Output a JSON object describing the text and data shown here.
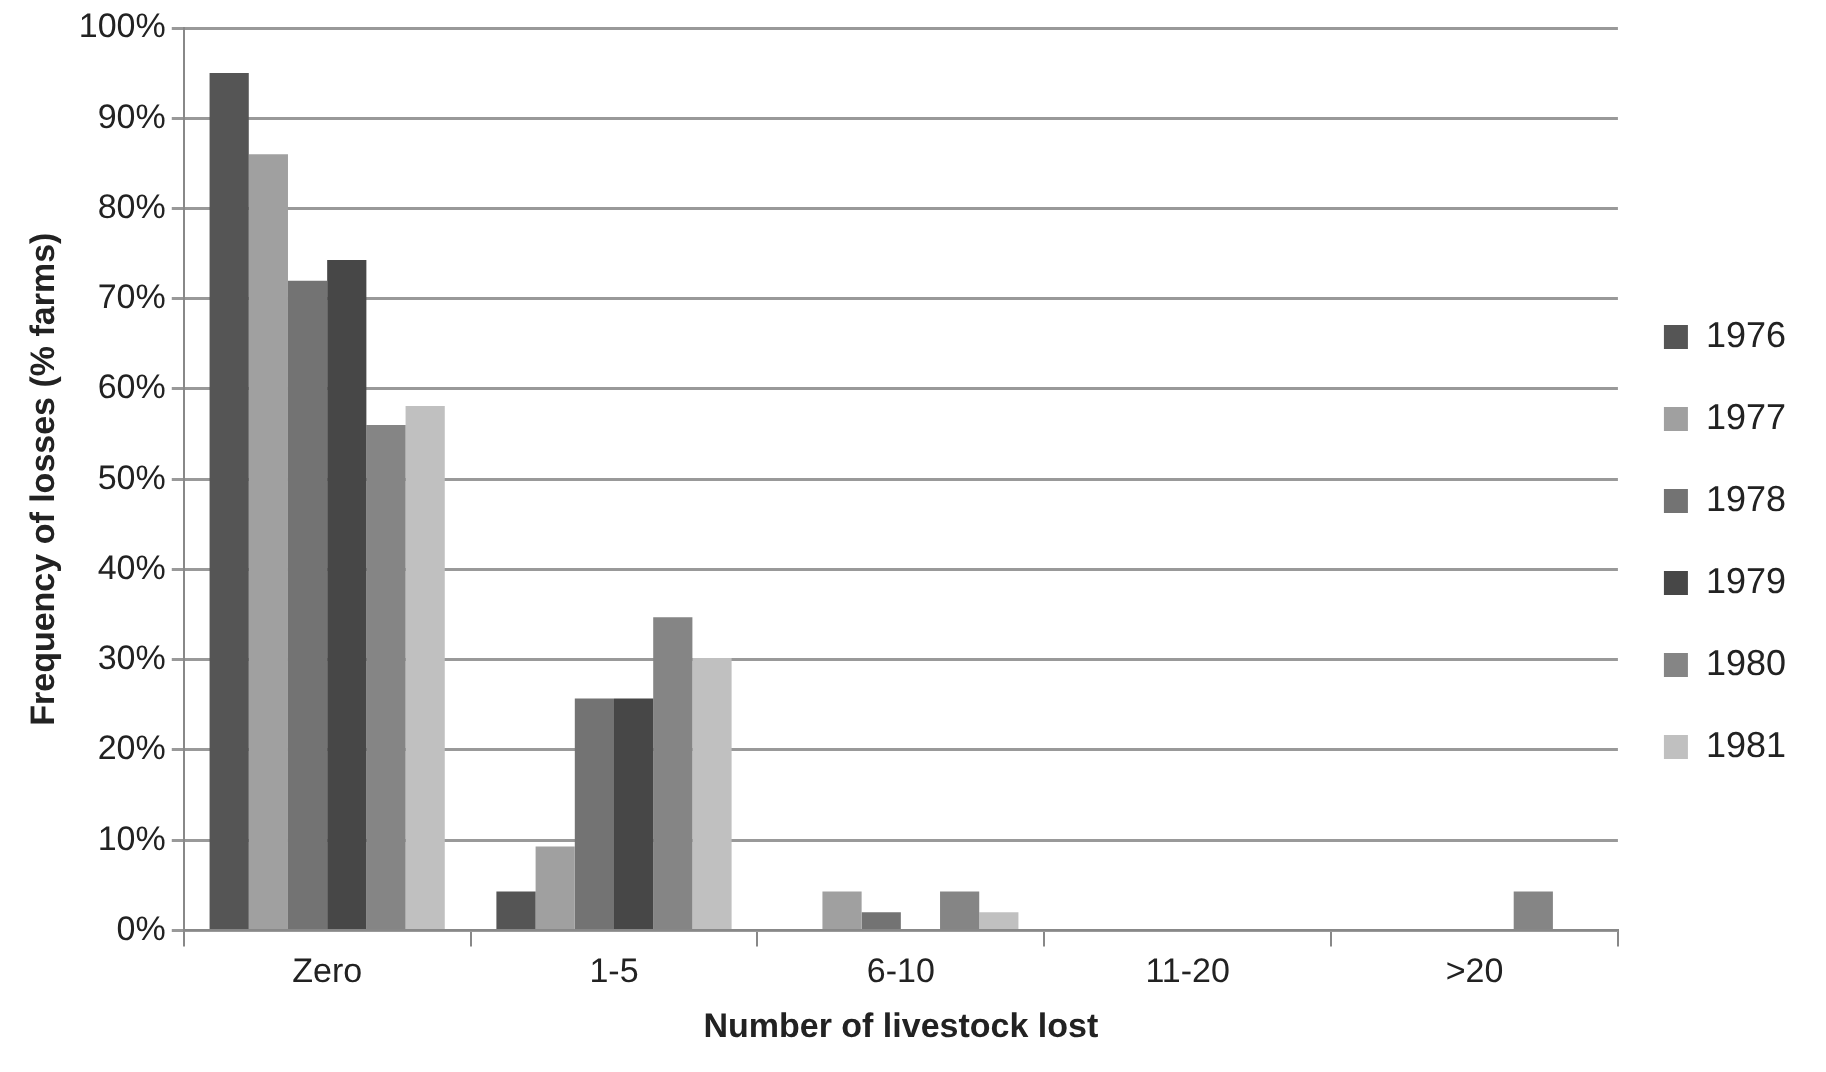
{
  "chart_data": {
    "type": "bar",
    "xlabel": "Number of livestock lost",
    "ylabel": "Frequency of losses (% farms)",
    "categories": [
      "Zero",
      "1-5",
      "6-10",
      "11-20",
      ">20"
    ],
    "series": [
      {
        "name": "1976",
        "color": "#555555",
        "values": [
          95,
          4.3,
          0,
          0,
          0
        ]
      },
      {
        "name": "1977",
        "color": "#a0a0a0",
        "values": [
          86,
          9.3,
          4.3,
          0,
          0
        ]
      },
      {
        "name": "1978",
        "color": "#737373",
        "values": [
          72,
          25.7,
          2.0,
          0,
          0
        ]
      },
      {
        "name": "1979",
        "color": "#474747",
        "values": [
          74.3,
          25.7,
          0,
          0,
          0
        ]
      },
      {
        "name": "1980",
        "color": "#858585",
        "values": [
          56,
          34.7,
          4.3,
          0,
          4.3
        ]
      },
      {
        "name": "1981",
        "color": "#c0c0c0",
        "values": [
          58.1,
          30.2,
          2.0,
          0,
          0
        ]
      }
    ],
    "ylim": [
      0,
      100
    ],
    "yticks": [
      {
        "value": 0,
        "label": "0%"
      },
      {
        "value": 10,
        "label": "10%"
      },
      {
        "value": 20,
        "label": "20%"
      },
      {
        "value": 30,
        "label": "30%"
      },
      {
        "value": 40,
        "label": "40%"
      },
      {
        "value": 50,
        "label": "50%"
      },
      {
        "value": 60,
        "label": "60%"
      },
      {
        "value": 70,
        "label": "70%"
      },
      {
        "value": 80,
        "label": "80%"
      },
      {
        "value": 90,
        "label": "90%"
      },
      {
        "value": 100,
        "label": "100%"
      }
    ],
    "grid": "y",
    "legend": "right"
  }
}
